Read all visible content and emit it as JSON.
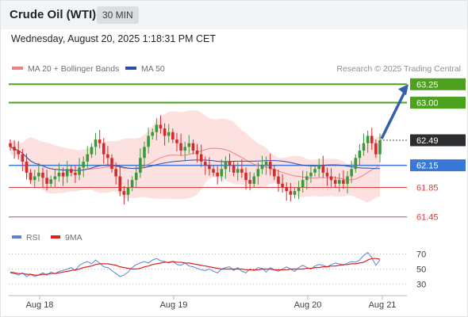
{
  "header": {
    "title": "Crude Oil (WTI)",
    "interval": "30 MIN"
  },
  "datetime": "Wednesday, August 20, 2025 1:18:31 PM CET",
  "legend": {
    "ma20": "MA 20 + Bollinger Bands",
    "ma50": "MA 50",
    "rsi": "RSI",
    "rsi_ma": "9MA"
  },
  "copyright": "Research © 2025 Trading Central",
  "colors": {
    "up": "#3a9a3a",
    "down": "#d42a2a",
    "ma20": "#f08080",
    "ma50": "#2a4ea8",
    "bollinger": "#fde0e0",
    "target": "#4ca11e",
    "pivot": "#3a78d8",
    "support": "#e03c3c",
    "last": "#2b2e31",
    "arrow": "#3361a8",
    "rsi": "#5b82d8",
    "rsi_ma": "#e02020"
  },
  "chart_data": {
    "type": "candlestick",
    "price_axis": {
      "ylim": [
        61.35,
        63.35
      ]
    },
    "x_ticks": [
      "Aug 18",
      "Aug 19",
      "Aug 20",
      "Aug 21"
    ],
    "levels": [
      {
        "value": 63.25,
        "label": "63.25",
        "kind": "target"
      },
      {
        "value": 63.0,
        "label": "63.00",
        "kind": "target"
      },
      {
        "value": 62.49,
        "label": "62.49",
        "kind": "last"
      },
      {
        "value": 62.15,
        "label": "62.15",
        "kind": "pivot"
      },
      {
        "value": 61.85,
        "label": "61.85",
        "kind": "support"
      },
      {
        "value": 61.45,
        "label": "61.45",
        "kind": "support"
      }
    ],
    "closes": [
      62.4,
      62.35,
      62.3,
      62.2,
      62.05,
      61.95,
      62.0,
      62.05,
      61.98,
      61.9,
      61.96,
      62.0,
      62.05,
      62.0,
      62.1,
      62.05,
      62.02,
      62.12,
      62.2,
      62.3,
      62.4,
      62.5,
      62.45,
      62.3,
      62.25,
      62.1,
      62.0,
      61.8,
      61.75,
      61.85,
      61.95,
      62.05,
      62.25,
      62.4,
      62.55,
      62.6,
      62.7,
      62.65,
      62.55,
      62.6,
      62.5,
      62.45,
      62.35,
      62.4,
      62.45,
      62.35,
      62.3,
      62.2,
      62.15,
      62.1,
      62.05,
      62.0,
      62.1,
      62.2,
      62.15,
      62.05,
      62.1,
      62.05,
      61.95,
      61.9,
      62.0,
      62.1,
      62.15,
      62.2,
      62.1,
      62.0,
      61.9,
      61.85,
      61.8,
      61.75,
      61.8,
      61.85,
      61.95,
      62.0,
      62.05,
      62.1,
      62.15,
      62.05,
      62.0,
      61.95,
      61.9,
      61.95,
      61.9,
      62.0,
      62.1,
      62.25,
      62.35,
      62.45,
      62.55,
      62.45,
      62.3,
      62.49
    ],
    "rsi": {
      "ticks": [
        70,
        50,
        30
      ],
      "values": [
        45,
        44,
        42,
        45,
        40,
        43,
        40,
        42,
        45,
        42,
        46,
        44,
        47,
        48,
        50,
        52,
        48,
        55,
        58,
        60,
        57,
        62,
        58,
        53,
        52,
        48,
        44,
        40,
        42,
        46,
        52,
        56,
        58,
        60,
        58,
        62,
        64,
        61,
        60,
        58,
        60,
        56,
        55,
        58,
        54,
        53,
        51,
        49,
        48,
        50,
        47,
        45,
        50,
        52,
        53,
        48,
        52,
        47,
        45,
        50,
        48,
        52,
        51,
        46,
        52,
        49,
        47,
        50,
        53,
        50,
        47,
        52,
        55,
        52,
        50,
        54,
        56,
        55,
        53,
        56,
        58,
        57,
        55,
        58,
        60,
        59,
        62,
        68,
        72,
        65,
        55,
        62
      ],
      "ma": [
        46,
        45,
        44,
        44,
        43,
        43,
        42,
        42,
        43,
        43,
        44,
        44,
        45,
        46,
        47,
        48,
        49,
        50,
        52,
        53,
        54,
        56,
        57,
        57,
        57,
        56,
        55,
        53,
        52,
        51,
        50,
        50,
        51,
        53,
        54,
        56,
        57,
        58,
        59,
        59,
        60,
        59,
        59,
        58,
        58,
        57,
        56,
        55,
        54,
        53,
        52,
        51,
        50,
        50,
        50,
        50,
        50,
        50,
        49,
        49,
        49,
        49,
        50,
        50,
        50,
        49,
        49,
        49,
        49,
        50,
        50,
        50,
        50,
        51,
        51,
        52,
        52,
        53,
        53,
        54,
        54,
        55,
        56,
        56,
        57,
        57,
        58,
        59,
        62,
        64,
        64,
        63
      ]
    }
  }
}
